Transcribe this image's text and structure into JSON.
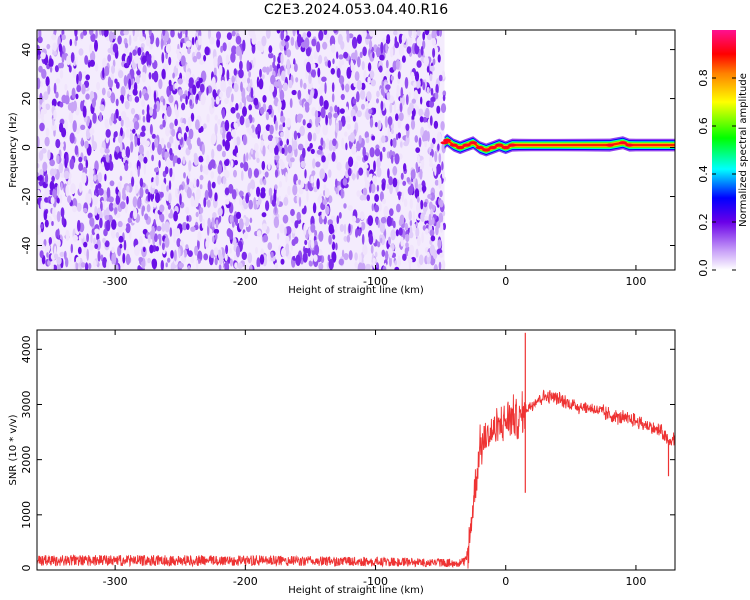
{
  "figure": {
    "title": "C2E3.2024.053.04.40.R16"
  },
  "chart_data": [
    {
      "type": "heatmap",
      "xlabel": "Height of straight line (km)",
      "ylabel": "Frequency (Hz)",
      "xlim": [
        -360,
        130
      ],
      "ylim": [
        -50,
        48
      ],
      "xticks": [
        -300,
        -200,
        -100,
        0,
        100
      ],
      "xtick_labels": [
        "-300",
        "-200",
        "-100",
        "0",
        "100"
      ],
      "yticks": [
        -40,
        -20,
        0,
        20,
        40
      ],
      "ytick_labels": [
        "-40",
        "-20",
        "0",
        "20",
        "40"
      ],
      "noise_region": {
        "x_start": -360,
        "x_end": -47,
        "level": "0.0-0.3"
      },
      "signal_track": {
        "x": [
          -47,
          -45,
          -40,
          -35,
          -30,
          -25,
          -20,
          -15,
          -10,
          -5,
          0,
          5,
          10,
          20,
          40,
          60,
          80,
          90,
          95,
          100,
          110,
          120,
          130
        ],
        "y": [
          2,
          3,
          1,
          0,
          1,
          2,
          0,
          -1,
          0,
          1,
          0,
          1,
          1,
          1,
          1,
          1,
          1,
          2,
          1,
          1,
          1,
          1,
          1
        ],
        "amplitude": [
          0.85,
          0.9,
          0.9,
          0.85,
          0.9,
          0.9,
          0.85,
          0.9,
          0.9,
          0.85,
          0.9,
          0.85,
          0.8,
          0.75,
          0.75,
          0.8,
          0.85,
          0.9,
          0.85,
          0.8,
          0.8,
          0.8,
          0.8
        ]
      },
      "colorbar": {
        "label": "Normalized spectral amplitude",
        "range": [
          0,
          1
        ],
        "ticks": [
          0.0,
          0.2,
          0.4,
          0.6,
          0.8
        ],
        "tick_labels": [
          "0.0",
          "0.2",
          "0.4",
          "0.6",
          "0.8"
        ],
        "colors": [
          "#ffffff",
          "#b070f0",
          "#6a00e8",
          "#0000ff",
          "#00ffff",
          "#00ff00",
          "#ffff00",
          "#ff8000",
          "#ff0000",
          "#ff1090"
        ]
      }
    },
    {
      "type": "line",
      "xlabel": "Height of straight line (km)",
      "ylabel": "SNR (10 * v/v)",
      "xlim": [
        -360,
        130
      ],
      "ylim": [
        0,
        4350
      ],
      "xticks": [
        -300,
        -200,
        -100,
        0,
        100
      ],
      "xtick_labels": [
        "-300",
        "-200",
        "-100",
        "0",
        "100"
      ],
      "yticks": [
        0,
        1000,
        2000,
        3000,
        4000
      ],
      "ytick_labels": [
        "0",
        "1000",
        "2000",
        "3000",
        "4000"
      ],
      "series": [
        {
          "color": "#ee3333",
          "x": [
            -360,
            -300,
            -250,
            -200,
            -150,
            -100,
            -60,
            -35,
            -30,
            -28,
            -25,
            -22,
            -20,
            -15,
            -10,
            -5,
            0,
            5,
            10,
            15,
            20,
            25,
            30,
            35,
            40,
            50,
            60,
            70,
            80,
            90,
            100,
            110,
            120,
            125,
            130
          ],
          "y": [
            150,
            150,
            150,
            150,
            140,
            130,
            120,
            110,
            150,
            500,
            1200,
            1800,
            2200,
            2400,
            2500,
            2600,
            2700,
            2800,
            2700,
            2900,
            3000,
            3100,
            3150,
            3150,
            3100,
            3000,
            2950,
            2900,
            2800,
            2750,
            2700,
            2600,
            2500,
            2300,
            2400
          ],
          "spikes": [
            {
              "x": 15,
              "y": 4300
            },
            {
              "x": 125,
              "y": 1700
            },
            {
              "x": 15,
              "y": 1400
            }
          ]
        }
      ]
    }
  ]
}
